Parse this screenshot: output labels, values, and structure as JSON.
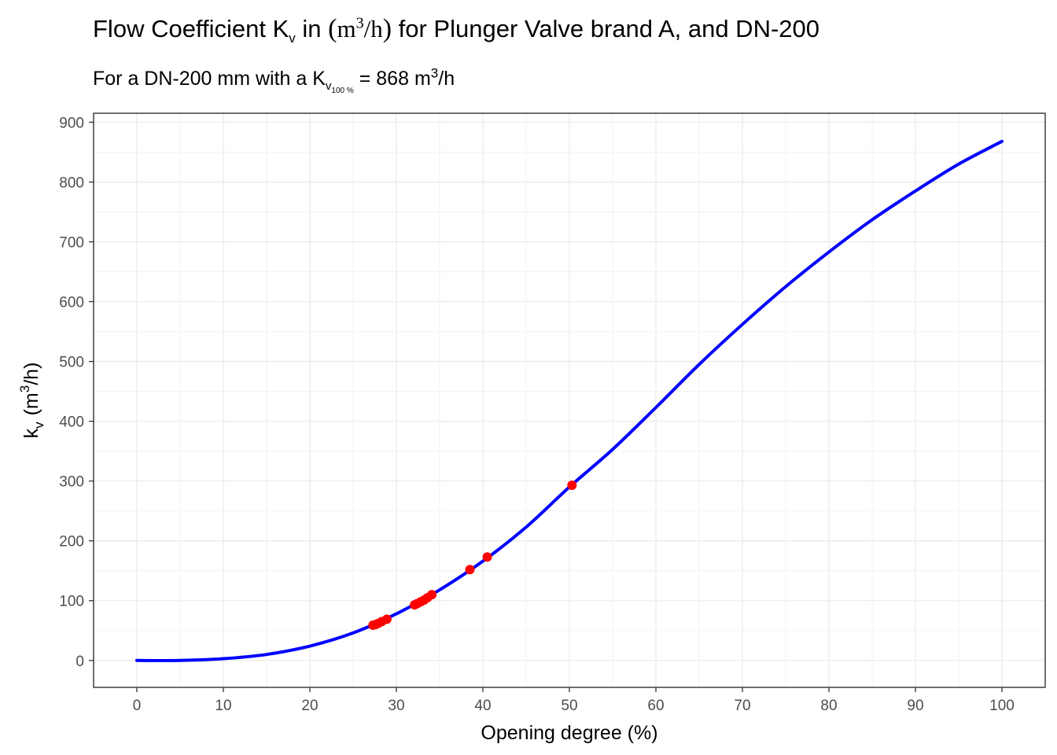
{
  "title": {
    "prefix": "Flow Coefficient K",
    "sub": "v",
    "mid": " in ",
    "unit_base": "m",
    "unit_sup": "3",
    "unit_rest": "/h",
    "suffix": " for Plunger Valve brand A, and DN-200"
  },
  "subtitle": {
    "prefix": "For a DN-200 mm with a K",
    "sub": "v",
    "subsub": "100 %",
    "eq": " = ",
    "value": "868",
    "unit_base": " m",
    "unit_sup": "3",
    "unit_rest": "/h"
  },
  "chart_data": {
    "type": "line",
    "xlabel": "Opening degree (%)",
    "ylabel": {
      "base": "k",
      "sub": "v",
      "unit_open": "(m",
      "unit_sup": "3",
      "unit_close": "/h)"
    },
    "xlim": [
      -5,
      105
    ],
    "ylim": [
      -45,
      915
    ],
    "x_ticks": [
      0,
      10,
      20,
      30,
      40,
      50,
      60,
      70,
      80,
      90,
      100
    ],
    "y_ticks": [
      0,
      100,
      200,
      300,
      400,
      500,
      600,
      700,
      800,
      900
    ],
    "x_minor_step": 5,
    "y_minor_step": 50,
    "grid": true,
    "series": [
      {
        "kind": "line",
        "color": "#0000ff",
        "x": [
          0,
          5,
          10,
          15,
          20,
          25,
          30,
          35,
          40,
          45,
          50,
          55,
          60,
          65,
          70,
          75,
          80,
          85,
          90,
          95,
          100
        ],
        "y": [
          0,
          0,
          3,
          10,
          24,
          46,
          78,
          118,
          166,
          223,
          290,
          353,
          423,
          495,
          562,
          625,
          683,
          737,
          785,
          830,
          868
        ]
      },
      {
        "kind": "points",
        "color": "#ff0000",
        "x": [
          27.3,
          27.6,
          27.9,
          28.3,
          28.9,
          32.1,
          32.4,
          32.8,
          33.2,
          33.6,
          34.1,
          38.5,
          40.5,
          50.3
        ],
        "y": [
          59,
          60,
          62,
          65,
          69,
          93,
          95,
          98,
          101,
          105,
          110,
          152,
          173,
          293
        ]
      }
    ]
  }
}
